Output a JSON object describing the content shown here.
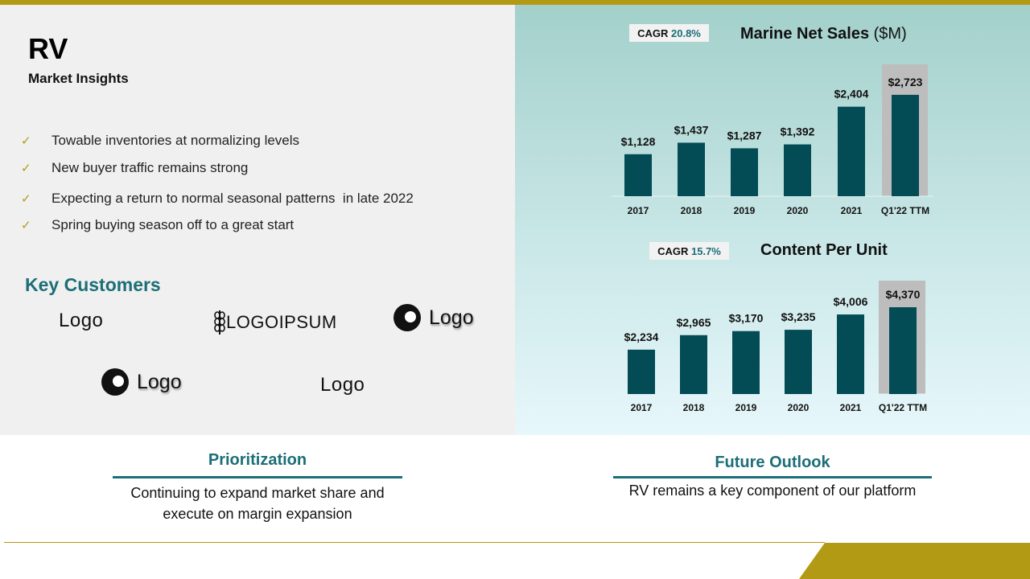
{
  "header": {
    "title": "RV",
    "subtitle": "Market Insights"
  },
  "insights": [
    "Towable inventories at normalizing levels",
    "New buyer traffic remains strong",
    "Expecting a return to normal seasonal patterns  in late 2022",
    "Spring buying season off to a great start"
  ],
  "key_customers": {
    "title": "Key Customers",
    "logos": [
      "Logo",
      "LOGOIPSUM",
      "Logo",
      "Logo",
      "Logo"
    ]
  },
  "prioritization": {
    "title": "Prioritization",
    "text_line1": "Continuing to expand market share and",
    "text_line2": "execute on margin expansion"
  },
  "future_outlook": {
    "title": "Future Outlook",
    "text": "RV remains a key component of our platform"
  },
  "colors": {
    "gold": "#b39a14",
    "teal": "#1c6e77",
    "bar": "#034b55",
    "highlight": "#bdbdbd"
  },
  "icons": {
    "bullet": "check-icon",
    "logo_mark": "wheat-icon",
    "logo_circle": "circle-logo-icon"
  },
  "chart_data": [
    {
      "type": "bar",
      "title": "Marine Net Sales",
      "title_unit": "($M)",
      "cagr_label": "CAGR",
      "cagr_value": "20.8%",
      "categories": [
        "2017",
        "2018",
        "2019",
        "2020",
        "2021",
        "Q1'22 TTM"
      ],
      "values": [
        1128,
        1437,
        1287,
        1392,
        2404,
        2723
      ],
      "data_labels": [
        "$1,128",
        "$1,437",
        "$1,287",
        "$1,392",
        "$2,404",
        "$2,723"
      ],
      "highlighted_category": "Q1'22 TTM",
      "grid": false
    },
    {
      "type": "bar",
      "title": "Content Per Unit",
      "cagr_label": "CAGR",
      "cagr_value": "15.7%",
      "categories": [
        "2017",
        "2018",
        "2019",
        "2020",
        "2021",
        "Q1'22 TTM"
      ],
      "values": [
        2234,
        2965,
        3170,
        3235,
        4006,
        4370
      ],
      "data_labels": [
        "$2,234",
        "$2,965",
        "$3,170",
        "$3,235",
        "$4,006",
        "$4,370"
      ],
      "highlighted_category": "Q1'22 TTM",
      "grid": false
    }
  ]
}
